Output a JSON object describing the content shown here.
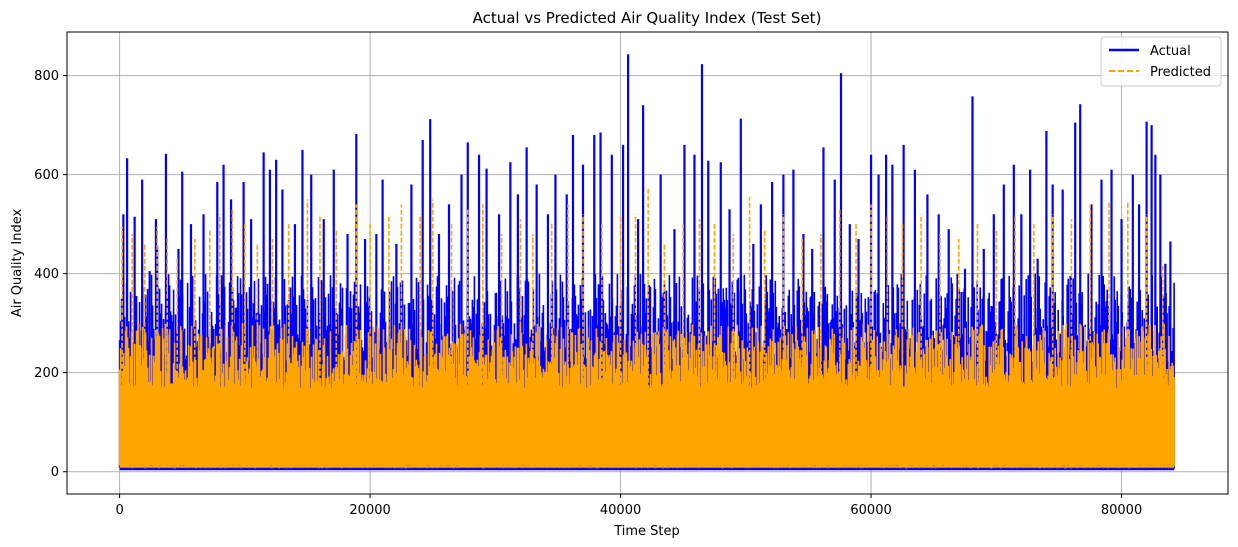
{
  "chart_data": {
    "type": "line",
    "title": "Actual vs Predicted Air Quality Index (Test Set)",
    "xlabel": "Time Step",
    "ylabel": "Air Quality Index",
    "xlim": [
      -4200,
      88500
    ],
    "ylim": [
      -45,
      888
    ],
    "xticks": [
      0,
      20000,
      40000,
      60000,
      80000
    ],
    "yticks": [
      0,
      200,
      400,
      600,
      800
    ],
    "grid": true,
    "legend_position": "top-right",
    "series": [
      {
        "name": "Actual",
        "color": "#0000ff",
        "style": "solid",
        "n_points": 84200,
        "floor": 5,
        "band_top": 400,
        "peaks": [
          {
            "x": 300,
            "y": 520
          },
          {
            "x": 600,
            "y": 633
          },
          {
            "x": 1200,
            "y": 515
          },
          {
            "x": 1800,
            "y": 590
          },
          {
            "x": 2400,
            "y": 405
          },
          {
            "x": 2900,
            "y": 510
          },
          {
            "x": 3000,
            "y": 455
          },
          {
            "x": 3700,
            "y": 642
          },
          {
            "x": 4700,
            "y": 450
          },
          {
            "x": 5000,
            "y": 606
          },
          {
            "x": 5700,
            "y": 500
          },
          {
            "x": 6700,
            "y": 520
          },
          {
            "x": 7800,
            "y": 585
          },
          {
            "x": 8300,
            "y": 620
          },
          {
            "x": 8900,
            "y": 550
          },
          {
            "x": 9900,
            "y": 585
          },
          {
            "x": 10500,
            "y": 510
          },
          {
            "x": 11500,
            "y": 645
          },
          {
            "x": 12000,
            "y": 610
          },
          {
            "x": 12500,
            "y": 630
          },
          {
            "x": 13000,
            "y": 570
          },
          {
            "x": 14000,
            "y": 500
          },
          {
            "x": 14600,
            "y": 650
          },
          {
            "x": 15300,
            "y": 600
          },
          {
            "x": 16300,
            "y": 510
          },
          {
            "x": 17100,
            "y": 610
          },
          {
            "x": 18200,
            "y": 480
          },
          {
            "x": 18900,
            "y": 682
          },
          {
            "x": 19600,
            "y": 470
          },
          {
            "x": 20500,
            "y": 480
          },
          {
            "x": 21000,
            "y": 590
          },
          {
            "x": 22100,
            "y": 460
          },
          {
            "x": 23300,
            "y": 580
          },
          {
            "x": 24200,
            "y": 670
          },
          {
            "x": 24800,
            "y": 712
          },
          {
            "x": 25500,
            "y": 480
          },
          {
            "x": 26300,
            "y": 540
          },
          {
            "x": 27300,
            "y": 600
          },
          {
            "x": 27800,
            "y": 665
          },
          {
            "x": 28700,
            "y": 640
          },
          {
            "x": 29300,
            "y": 612
          },
          {
            "x": 30300,
            "y": 520
          },
          {
            "x": 31200,
            "y": 625
          },
          {
            "x": 31800,
            "y": 560
          },
          {
            "x": 32500,
            "y": 655
          },
          {
            "x": 33300,
            "y": 580
          },
          {
            "x": 34200,
            "y": 520
          },
          {
            "x": 34800,
            "y": 600
          },
          {
            "x": 35700,
            "y": 560
          },
          {
            "x": 36200,
            "y": 680
          },
          {
            "x": 37000,
            "y": 620
          },
          {
            "x": 37900,
            "y": 680
          },
          {
            "x": 38400,
            "y": 685
          },
          {
            "x": 39300,
            "y": 640
          },
          {
            "x": 40200,
            "y": 660
          },
          {
            "x": 40600,
            "y": 843
          },
          {
            "x": 41400,
            "y": 510
          },
          {
            "x": 41800,
            "y": 740
          },
          {
            "x": 43200,
            "y": 600
          },
          {
            "x": 44300,
            "y": 490
          },
          {
            "x": 45100,
            "y": 660
          },
          {
            "x": 45900,
            "y": 640
          },
          {
            "x": 46500,
            "y": 823
          },
          {
            "x": 47000,
            "y": 628
          },
          {
            "x": 48000,
            "y": 625
          },
          {
            "x": 48700,
            "y": 530
          },
          {
            "x": 49600,
            "y": 713
          },
          {
            "x": 50600,
            "y": 460
          },
          {
            "x": 51200,
            "y": 540
          },
          {
            "x": 52100,
            "y": 585
          },
          {
            "x": 53000,
            "y": 600
          },
          {
            "x": 53800,
            "y": 610
          },
          {
            "x": 54600,
            "y": 480
          },
          {
            "x": 55300,
            "y": 450
          },
          {
            "x": 56200,
            "y": 655
          },
          {
            "x": 57100,
            "y": 590
          },
          {
            "x": 57600,
            "y": 805
          },
          {
            "x": 58300,
            "y": 500
          },
          {
            "x": 59000,
            "y": 470
          },
          {
            "x": 60000,
            "y": 640
          },
          {
            "x": 60600,
            "y": 600
          },
          {
            "x": 61200,
            "y": 640
          },
          {
            "x": 61700,
            "y": 620
          },
          {
            "x": 62600,
            "y": 660
          },
          {
            "x": 63500,
            "y": 610
          },
          {
            "x": 64500,
            "y": 560
          },
          {
            "x": 65400,
            "y": 520
          },
          {
            "x": 66200,
            "y": 490
          },
          {
            "x": 67500,
            "y": 410
          },
          {
            "x": 68100,
            "y": 758
          },
          {
            "x": 69000,
            "y": 450
          },
          {
            "x": 69800,
            "y": 520
          },
          {
            "x": 70600,
            "y": 580
          },
          {
            "x": 71400,
            "y": 620
          },
          {
            "x": 72000,
            "y": 520
          },
          {
            "x": 72700,
            "y": 610
          },
          {
            "x": 73300,
            "y": 430
          },
          {
            "x": 74000,
            "y": 688
          },
          {
            "x": 74500,
            "y": 580
          },
          {
            "x": 75300,
            "y": 570
          },
          {
            "x": 76300,
            "y": 705
          },
          {
            "x": 76700,
            "y": 742
          },
          {
            "x": 77600,
            "y": 540
          },
          {
            "x": 78400,
            "y": 590
          },
          {
            "x": 79200,
            "y": 610
          },
          {
            "x": 80000,
            "y": 510
          },
          {
            "x": 80900,
            "y": 600
          },
          {
            "x": 81400,
            "y": 540
          },
          {
            "x": 82000,
            "y": 707
          },
          {
            "x": 82400,
            "y": 700
          },
          {
            "x": 82700,
            "y": 640
          },
          {
            "x": 83100,
            "y": 600
          },
          {
            "x": 83500,
            "y": 420
          },
          {
            "x": 83900,
            "y": 465
          }
        ]
      },
      {
        "name": "Predicted",
        "color": "#ffa500",
        "style": "dashed",
        "n_points": 84200,
        "floor": 10,
        "band_top": 300,
        "peaks": [
          {
            "x": 200,
            "y": 495
          },
          {
            "x": 1000,
            "y": 480
          },
          {
            "x": 2000,
            "y": 460
          },
          {
            "x": 3000,
            "y": 495
          },
          {
            "x": 3800,
            "y": 470
          },
          {
            "x": 4600,
            "y": 430
          },
          {
            "x": 6000,
            "y": 470
          },
          {
            "x": 7200,
            "y": 490
          },
          {
            "x": 8000,
            "y": 520
          },
          {
            "x": 9000,
            "y": 530
          },
          {
            "x": 10000,
            "y": 505
          },
          {
            "x": 11000,
            "y": 460
          },
          {
            "x": 12200,
            "y": 470
          },
          {
            "x": 13500,
            "y": 500
          },
          {
            "x": 15000,
            "y": 550
          },
          {
            "x": 16000,
            "y": 520
          },
          {
            "x": 17300,
            "y": 490
          },
          {
            "x": 18900,
            "y": 540
          },
          {
            "x": 20000,
            "y": 505
          },
          {
            "x": 21500,
            "y": 520
          },
          {
            "x": 22500,
            "y": 540
          },
          {
            "x": 24000,
            "y": 520
          },
          {
            "x": 25000,
            "y": 550
          },
          {
            "x": 26500,
            "y": 500
          },
          {
            "x": 27800,
            "y": 530
          },
          {
            "x": 29000,
            "y": 540
          },
          {
            "x": 30500,
            "y": 480
          },
          {
            "x": 32000,
            "y": 510
          },
          {
            "x": 33000,
            "y": 480
          },
          {
            "x": 34500,
            "y": 505
          },
          {
            "x": 35800,
            "y": 540
          },
          {
            "x": 37000,
            "y": 520
          },
          {
            "x": 38500,
            "y": 505
          },
          {
            "x": 40000,
            "y": 515
          },
          {
            "x": 41200,
            "y": 520
          },
          {
            "x": 42200,
            "y": 572
          },
          {
            "x": 43500,
            "y": 460
          },
          {
            "x": 45000,
            "y": 500
          },
          {
            "x": 46300,
            "y": 510
          },
          {
            "x": 47500,
            "y": 500
          },
          {
            "x": 49000,
            "y": 480
          },
          {
            "x": 50300,
            "y": 555
          },
          {
            "x": 51500,
            "y": 490
          },
          {
            "x": 53000,
            "y": 520
          },
          {
            "x": 54500,
            "y": 470
          },
          {
            "x": 56000,
            "y": 480
          },
          {
            "x": 57500,
            "y": 530
          },
          {
            "x": 58800,
            "y": 500
          },
          {
            "x": 60000,
            "y": 540
          },
          {
            "x": 61300,
            "y": 520
          },
          {
            "x": 62500,
            "y": 505
          },
          {
            "x": 64000,
            "y": 520
          },
          {
            "x": 65500,
            "y": 480
          },
          {
            "x": 67000,
            "y": 470
          },
          {
            "x": 68500,
            "y": 500
          },
          {
            "x": 70000,
            "y": 490
          },
          {
            "x": 71500,
            "y": 520
          },
          {
            "x": 73000,
            "y": 500
          },
          {
            "x": 74500,
            "y": 520
          },
          {
            "x": 76000,
            "y": 510
          },
          {
            "x": 77500,
            "y": 540
          },
          {
            "x": 79000,
            "y": 545
          },
          {
            "x": 80500,
            "y": 545
          },
          {
            "x": 82000,
            "y": 520
          },
          {
            "x": 83300,
            "y": 420
          }
        ]
      }
    ]
  }
}
